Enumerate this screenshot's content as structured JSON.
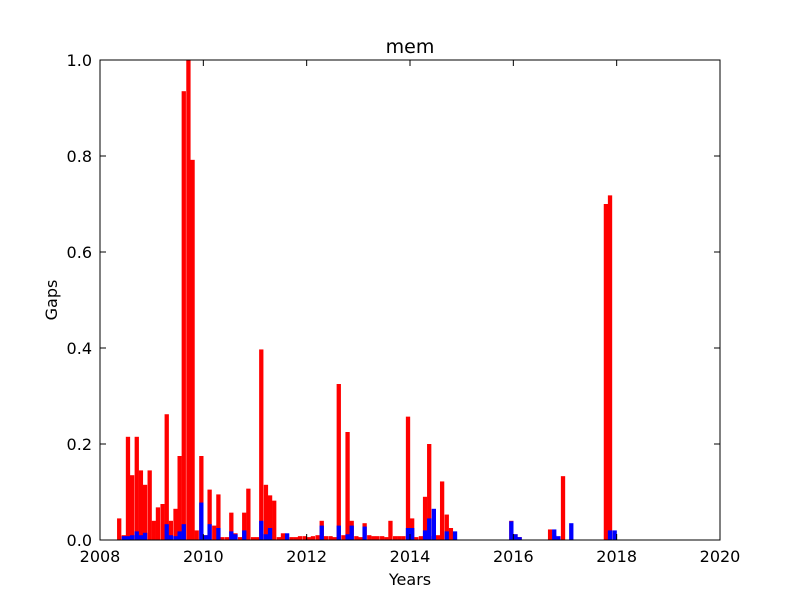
{
  "chart_data": {
    "type": "bar",
    "title": "mem",
    "xlabel": "Years",
    "ylabel": "Gaps",
    "xlim": [
      2008,
      2020
    ],
    "ylim": [
      0,
      1.0
    ],
    "x_ticks": [
      "2008",
      "2010",
      "2012",
      "2014",
      "2016",
      "2018",
      "2020"
    ],
    "y_ticks": [
      "0.0",
      "0.2",
      "0.4",
      "0.6",
      "0.8",
      "1.0"
    ],
    "grid": false,
    "legend": "none",
    "bar_width_years": 0.0833,
    "series": [
      {
        "color": "#ff0000",
        "x": [
          2008.33,
          2008.42,
          2008.5,
          2008.58,
          2008.67,
          2008.75,
          2008.83,
          2008.92,
          2009.0,
          2009.08,
          2009.17,
          2009.25,
          2009.33,
          2009.42,
          2009.5,
          2009.58,
          2009.67,
          2009.75,
          2009.83,
          2009.92,
          2010.0,
          2010.08,
          2010.17,
          2010.25,
          2010.33,
          2010.42,
          2010.5,
          2010.58,
          2010.67,
          2010.75,
          2010.83,
          2010.92,
          2011.0,
          2011.08,
          2011.17,
          2011.25,
          2011.33,
          2011.42,
          2011.5,
          2011.58,
          2011.67,
          2011.75,
          2011.83,
          2011.92,
          2012.0,
          2012.08,
          2012.17,
          2012.25,
          2012.33,
          2012.42,
          2012.5,
          2012.58,
          2012.67,
          2012.75,
          2012.83,
          2012.92,
          2013.0,
          2013.08,
          2013.17,
          2013.25,
          2013.33,
          2013.42,
          2013.5,
          2013.58,
          2013.67,
          2013.75,
          2013.83,
          2013.92,
          2014.0,
          2014.08,
          2014.17,
          2014.25,
          2014.33,
          2014.42,
          2014.5,
          2014.58,
          2014.67,
          2014.75,
          2015.92,
          2016.0,
          2016.08,
          2016.67,
          2016.75,
          2016.83,
          2016.92,
          2017.75,
          2017.83
        ],
        "values": [
          0.045,
          0.01,
          0.215,
          0.135,
          0.215,
          0.145,
          0.115,
          0.145,
          0.04,
          0.068,
          0.075,
          0.262,
          0.04,
          0.065,
          0.175,
          0.935,
          1.0,
          0.792,
          0.02,
          0.175,
          0.01,
          0.105,
          0.03,
          0.095,
          0.006,
          0.006,
          0.057,
          0.014,
          0.006,
          0.057,
          0.107,
          0.006,
          0.006,
          0.397,
          0.115,
          0.093,
          0.082,
          0.006,
          0.014,
          0.006,
          0.006,
          0.006,
          0.008,
          0.008,
          0.006,
          0.008,
          0.01,
          0.04,
          0.008,
          0.008,
          0.006,
          0.325,
          0.01,
          0.225,
          0.04,
          0.008,
          0.006,
          0.035,
          0.01,
          0.008,
          0.008,
          0.008,
          0.006,
          0.04,
          0.008,
          0.008,
          0.008,
          0.257,
          0.045,
          0.006,
          0.008,
          0.09,
          0.2,
          0.008,
          0.01,
          0.122,
          0.053,
          0.025,
          0.04,
          0.012,
          0.006,
          0.022,
          0.01,
          0.006,
          0.133,
          0.7,
          0.718
        ]
      },
      {
        "color": "#0000ff",
        "x": [
          2008.42,
          2008.5,
          2008.58,
          2008.67,
          2008.75,
          2008.83,
          2009.25,
          2009.33,
          2009.42,
          2009.5,
          2009.58,
          2009.92,
          2010.0,
          2010.08,
          2010.25,
          2010.5,
          2010.58,
          2010.75,
          2011.08,
          2011.17,
          2011.25,
          2011.58,
          2012.25,
          2012.58,
          2012.75,
          2012.83,
          2013.08,
          2013.92,
          2014.0,
          2014.25,
          2014.33,
          2014.42,
          2014.67,
          2014.83,
          2015.92,
          2016.0,
          2016.08,
          2016.75,
          2016.83,
          2017.08,
          2017.83,
          2017.92
        ],
        "values": [
          0.008,
          0.008,
          0.01,
          0.018,
          0.01,
          0.015,
          0.033,
          0.01,
          0.008,
          0.018,
          0.033,
          0.078,
          0.01,
          0.033,
          0.025,
          0.018,
          0.012,
          0.02,
          0.04,
          0.012,
          0.025,
          0.014,
          0.03,
          0.03,
          0.012,
          0.03,
          0.028,
          0.025,
          0.025,
          0.02,
          0.045,
          0.065,
          0.018,
          0.018,
          0.039,
          0.012,
          0.006,
          0.022,
          0.008,
          0.035,
          0.02,
          0.02
        ]
      }
    ]
  }
}
